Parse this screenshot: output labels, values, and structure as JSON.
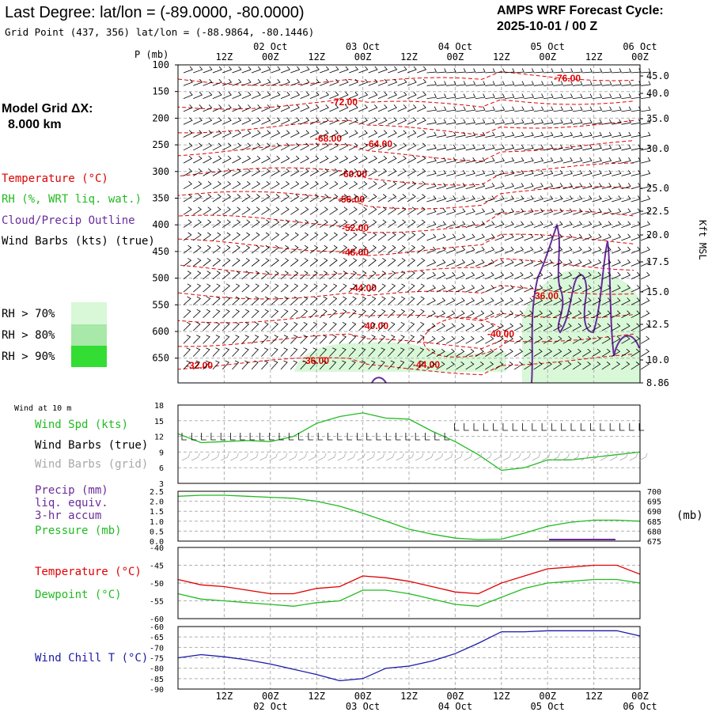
{
  "header": {
    "title": "Last Degree:  lat/lon = (-89.0000, -80.0000)",
    "subtitle": "Grid Point (437, 356) lat/lon = (-88.9864, -80.1446)",
    "cycle_line1": "AMPS WRF Forecast Cycle:",
    "cycle_line2": "2025-10-01 / 00  Z"
  },
  "model_grid": {
    "label": "Model Grid ΔX:",
    "value": "8.000 km"
  },
  "colors": {
    "temperature": "#e00000",
    "rh": "#22bb22",
    "cloud": "#6a2c9a",
    "wind": "#000000",
    "wind_grid": "#a8a8a8",
    "windchill": "#1a1aa8",
    "rh70": "#d8f8d8",
    "rh80": "#a8e8a8",
    "rh90": "#33dd33"
  },
  "upper_legend": {
    "temperature": "Temperature (°C)",
    "rh": "RH (%, WRT liq. wat.)",
    "cloud": "Cloud/Precip Outline",
    "wind": "Wind Barbs (kts) (true)",
    "rh_levels": [
      "RH > 70%",
      "RH > 80%",
      "RH > 90%"
    ]
  },
  "time_axis": {
    "top_hours": [
      "12Z",
      "00Z",
      "12Z",
      "00Z",
      "12Z",
      "00Z",
      "12Z",
      "00Z",
      "12Z",
      "00Z"
    ],
    "top_dates": [
      "02 Oct",
      "03 Oct",
      "04 Oct",
      "05 Oct",
      "06 Oct"
    ],
    "bottom_hours": [
      "12Z",
      "00Z",
      "12Z",
      "00Z",
      "12Z",
      "00Z",
      "12Z",
      "00Z",
      "12Z",
      "00Z"
    ],
    "bottom_dates": [
      "02 Oct",
      "03 Oct",
      "04 Oct",
      "05 Oct",
      "06 Oct"
    ]
  },
  "pressure_axis": {
    "label": "P (mb)",
    "ticks": [
      "100",
      "150",
      "200",
      "250",
      "300",
      "350",
      "400",
      "450",
      "500",
      "550",
      "600",
      "650"
    ]
  },
  "height_axis": {
    "label": "Kft MSL",
    "ticks": [
      "45.0",
      "40.0",
      "35.0",
      "30.0",
      "25.0",
      "22.5",
      "20.0",
      "17.5",
      "15.0",
      "12.5",
      "10.0",
      "8.86"
    ]
  },
  "contours": {
    "labels": [
      "-76.00",
      "-72.00",
      "-68.00",
      "-64.00",
      "-60.00",
      "-56.00",
      "-52.00",
      "-48.00",
      "-44.00",
      "-40.00",
      "-36.00",
      "-32.00",
      "-36.00",
      "-40.00",
      "-44.00"
    ]
  },
  "sfc_wind_panel": {
    "title": "Wind at 10 m",
    "labels": [
      "Wind Spd (kts)",
      "Wind Barbs (true)",
      "Wind Barbs (grid)"
    ],
    "yticks": [
      "18",
      "15",
      "12",
      "9",
      "6",
      "3"
    ]
  },
  "precip_panel": {
    "labels": [
      "Precip (mm)",
      "liq. equiv.",
      "3-hr accum",
      "Pressure (mb)"
    ],
    "yticks_left": [
      "2.5",
      "2.0",
      "1.5",
      "1.0",
      "0.5",
      "0.0"
    ],
    "yticks_right": [
      "700",
      "695",
      "690",
      "685",
      "680",
      "675"
    ],
    "unit_right": "(mb)"
  },
  "temp_panel": {
    "labels": [
      "Temperature (°C)",
      "Dewpoint (°C)"
    ],
    "yticks": [
      "-40",
      "-45",
      "-50",
      "-55",
      "-60"
    ]
  },
  "windchill_panel": {
    "labels": [
      "Wind Chill T (°C)"
    ],
    "yticks": [
      "-60",
      "-65",
      "-70",
      "-75",
      "-80",
      "-85",
      "-90"
    ]
  },
  "chart_data": [
    {
      "type": "line",
      "panel": "10 m wind",
      "title": "Wind at 10 m",
      "ylabel": "Wind Spd (kts)",
      "ylim": [
        3,
        18
      ],
      "x_hours": [
        0,
        6,
        12,
        18,
        24,
        30,
        36,
        42,
        48,
        54,
        60,
        66,
        72,
        78,
        84,
        90,
        96,
        102,
        108,
        114,
        120
      ],
      "series": [
        {
          "name": "Wind Spd (kts)",
          "values": [
            12.5,
            10.8,
            11.0,
            11.2,
            11.0,
            12.0,
            14.5,
            15.8,
            16.5,
            15.5,
            15.3,
            13.0,
            11.0,
            8.5,
            5.5,
            6.0,
            7.5,
            7.5,
            8.0,
            8.5,
            9.0
          ]
        }
      ]
    },
    {
      "type": "line",
      "panel": "surface pressure",
      "ylabel": "Pressure (mb)",
      "ylim": [
        675,
        700
      ],
      "x_hours": [
        0,
        6,
        12,
        18,
        24,
        30,
        36,
        42,
        48,
        54,
        60,
        66,
        72,
        78,
        84,
        90,
        96,
        102,
        108,
        114,
        120
      ],
      "series": [
        {
          "name": "Pressure (mb)",
          "values": [
            697.5,
            698.0,
            698.0,
            697.5,
            697.0,
            696.5,
            695.0,
            692.5,
            689.0,
            685.0,
            681.0,
            678.5,
            676.5,
            675.8,
            676.0,
            679.0,
            682.5,
            684.5,
            685.5,
            685.5,
            685.0
          ]
        }
      ]
    },
    {
      "type": "line",
      "panel": "temperature",
      "ylim": [
        -60,
        -40
      ],
      "x_hours": [
        0,
        6,
        12,
        18,
        24,
        30,
        36,
        42,
        48,
        54,
        60,
        66,
        72,
        78,
        84,
        90,
        96,
        102,
        108,
        114,
        120
      ],
      "series": [
        {
          "name": "Temperature (°C)",
          "values": [
            -49.0,
            -50.5,
            -51.0,
            -52.0,
            -53.0,
            -53.0,
            -51.5,
            -51.0,
            -48.0,
            -48.5,
            -49.5,
            -51.0,
            -52.5,
            -53.0,
            -50.0,
            -48.0,
            -46.0,
            -45.5,
            -45.0,
            -45.0,
            -47.5
          ]
        },
        {
          "name": "Dewpoint (°C)",
          "values": [
            -53.0,
            -54.5,
            -55.0,
            -55.5,
            -56.0,
            -56.5,
            -55.5,
            -55.0,
            -52.0,
            -52.0,
            -53.0,
            -54.5,
            -56.0,
            -56.5,
            -54.0,
            -51.5,
            -50.0,
            -49.5,
            -49.0,
            -49.0,
            -50.0
          ]
        }
      ]
    },
    {
      "type": "line",
      "panel": "wind chill",
      "ylim": [
        -90,
        -60
      ],
      "x_hours": [
        0,
        6,
        12,
        18,
        24,
        30,
        36,
        42,
        48,
        54,
        60,
        66,
        72,
        78,
        84,
        90,
        96,
        102,
        108,
        114,
        120
      ],
      "series": [
        {
          "name": "Wind Chill T (°C)",
          "values": [
            -75.0,
            -73.5,
            -74.5,
            -76.0,
            -78.0,
            -80.5,
            -83.0,
            -86.0,
            -85.0,
            -80.0,
            -79.0,
            -76.5,
            -73.0,
            -68.0,
            -62.5,
            -62.5,
            -62.0,
            -62.0,
            -62.0,
            -62.0,
            -64.5
          ]
        }
      ]
    }
  ]
}
